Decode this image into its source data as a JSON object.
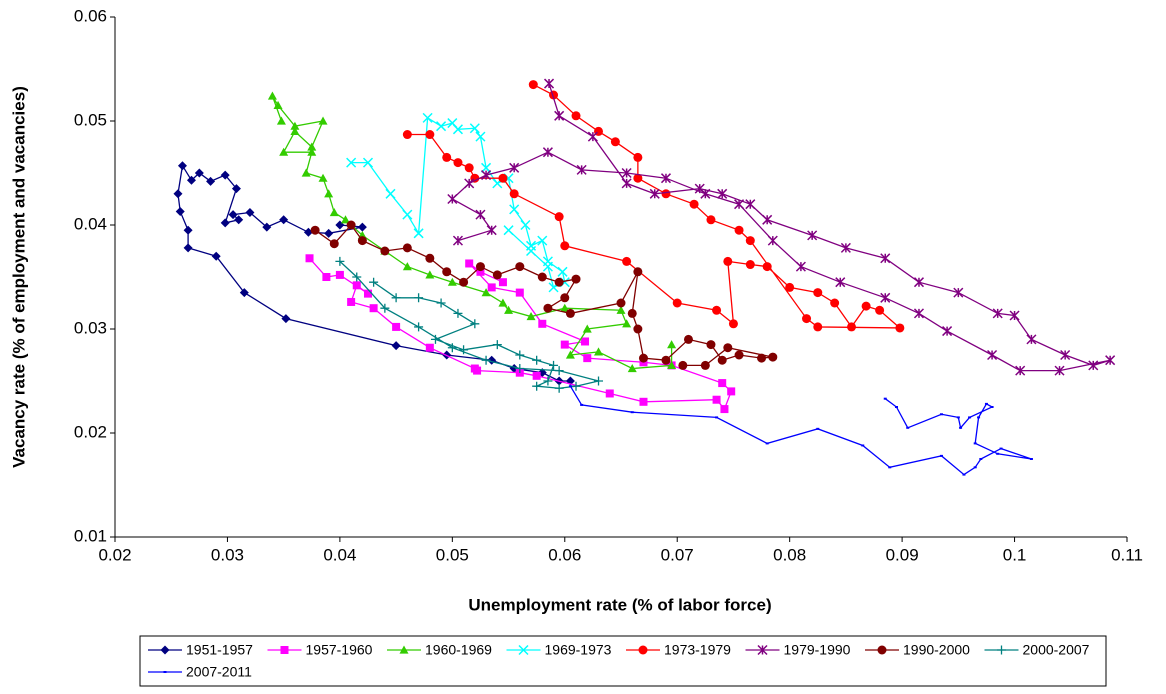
{
  "chart_data": {
    "type": "scatter",
    "lines": true,
    "xlabel": "Unemployment rate (% of labor force)",
    "ylabel": "Vacancy rate (% of employment and vacancies)",
    "xlim": [
      0.02,
      0.11
    ],
    "xticks": [
      0.02,
      0.03,
      0.04,
      0.05,
      0.06,
      0.07,
      0.08,
      0.09,
      0.1,
      0.11
    ],
    "ylim": [
      0.01,
      0.06
    ],
    "yticks": [
      0.01,
      0.02,
      0.03,
      0.04,
      0.05,
      0.06
    ],
    "grid": false,
    "legend": "bottom",
    "series": [
      {
        "name": "1951-1957",
        "color": "#000080",
        "marker": "diamond",
        "x": [
          0.04,
          0.042,
          0.039,
          0.0372,
          0.035,
          0.0335,
          0.032,
          0.0305,
          0.031,
          0.0298,
          0.0308,
          0.0298,
          0.0285,
          0.0275,
          0.0268,
          0.026,
          0.0256,
          0.0258,
          0.0265,
          0.0265,
          0.029,
          0.0315,
          0.0352,
          0.045,
          0.0495,
          0.0535,
          0.0555,
          0.058,
          0.0595,
          0.0605
        ],
        "values": [
          0.04,
          0.0398,
          0.0392,
          0.0393,
          0.0405,
          0.0398,
          0.0412,
          0.041,
          0.0405,
          0.0402,
          0.0435,
          0.0448,
          0.0442,
          0.045,
          0.0443,
          0.0457,
          0.043,
          0.0413,
          0.0395,
          0.0378,
          0.037,
          0.0335,
          0.031,
          0.0284,
          0.0275,
          0.027,
          0.0262,
          0.0258,
          0.025,
          0.025
        ]
      },
      {
        "name": "1957-1960",
        "color": "#ff00ff",
        "marker": "square",
        "x": [
          0.0373,
          0.0388,
          0.04,
          0.0425,
          0.0415,
          0.041,
          0.043,
          0.045,
          0.048,
          0.052,
          0.0522,
          0.056,
          0.0575,
          0.064,
          0.067,
          0.0735,
          0.0742,
          0.0748,
          0.074,
          0.0695,
          0.067,
          0.062,
          0.06,
          0.0618,
          0.058,
          0.056,
          0.0535,
          0.0515,
          0.0525,
          0.0545
        ],
        "values": [
          0.0368,
          0.035,
          0.0352,
          0.0334,
          0.0342,
          0.0326,
          0.032,
          0.0302,
          0.0282,
          0.0262,
          0.026,
          0.0258,
          0.0255,
          0.0238,
          0.023,
          0.0232,
          0.0223,
          0.024,
          0.0248,
          0.0265,
          0.0268,
          0.0272,
          0.0285,
          0.0288,
          0.0305,
          0.0335,
          0.034,
          0.0363,
          0.0355,
          0.0345
        ]
      },
      {
        "name": "1960-1969",
        "color": "#33cc00",
        "marker": "triangle",
        "x": [
          0.0695,
          0.0695,
          0.066,
          0.063,
          0.0605,
          0.062,
          0.0655,
          0.065,
          0.06,
          0.057,
          0.055,
          0.0545,
          0.053,
          0.05,
          0.048,
          0.046,
          0.044,
          0.042,
          0.0405,
          0.0395,
          0.039,
          0.0385,
          0.037,
          0.0375,
          0.035,
          0.036,
          0.0375,
          0.0385,
          0.036,
          0.0345,
          0.034,
          0.0348
        ],
        "values": [
          0.0285,
          0.0265,
          0.0262,
          0.0278,
          0.0275,
          0.03,
          0.0305,
          0.0318,
          0.032,
          0.0312,
          0.0318,
          0.0325,
          0.0335,
          0.0345,
          0.0352,
          0.036,
          0.0375,
          0.039,
          0.0405,
          0.0412,
          0.043,
          0.0445,
          0.045,
          0.047,
          0.047,
          0.049,
          0.0475,
          0.05,
          0.0495,
          0.0515,
          0.0524,
          0.05
        ]
      },
      {
        "name": "1969-1973",
        "color": "#00ffff",
        "marker": "x",
        "x": [
          0.041,
          0.0425,
          0.0445,
          0.046,
          0.047,
          0.0478,
          0.049,
          0.05,
          0.0505,
          0.052,
          0.0525,
          0.053,
          0.054,
          0.055,
          0.0555,
          0.0565,
          0.057,
          0.058,
          0.0585,
          0.0598,
          0.06,
          0.059,
          0.0585,
          0.057,
          0.055
        ],
        "values": [
          0.046,
          0.046,
          0.043,
          0.041,
          0.0392,
          0.0503,
          0.0495,
          0.0498,
          0.0492,
          0.0493,
          0.0485,
          0.0455,
          0.044,
          0.0445,
          0.0415,
          0.04,
          0.038,
          0.0385,
          0.0365,
          0.0355,
          0.0345,
          0.034,
          0.036,
          0.0375,
          0.0395
        ]
      },
      {
        "name": "1973-1979",
        "color": "#ff0000",
        "marker": "circle",
        "x": [
          0.046,
          0.048,
          0.0495,
          0.0505,
          0.0515,
          0.052,
          0.0545,
          0.0555,
          0.0595,
          0.06,
          0.0655,
          0.07,
          0.0735,
          0.075,
          0.0745,
          0.0765,
          0.078,
          0.08,
          0.0825,
          0.084,
          0.0855,
          0.0868,
          0.088,
          0.0898,
          0.0825,
          0.0815,
          0.0765,
          0.0755,
          0.073,
          0.0715,
          0.069,
          0.0665,
          0.0665,
          0.0645,
          0.063,
          0.061,
          0.059,
          0.0572
        ],
        "values": [
          0.0487,
          0.0487,
          0.0465,
          0.046,
          0.0455,
          0.0445,
          0.0445,
          0.043,
          0.0408,
          0.038,
          0.0365,
          0.0325,
          0.0318,
          0.0305,
          0.0365,
          0.0362,
          0.036,
          0.034,
          0.0335,
          0.0325,
          0.0302,
          0.0322,
          0.0318,
          0.0301,
          0.0302,
          0.031,
          0.0385,
          0.0395,
          0.0405,
          0.042,
          0.043,
          0.0445,
          0.0465,
          0.048,
          0.049,
          0.0505,
          0.0525,
          0.0535
        ]
      },
      {
        "name": "1979-1990",
        "color": "#800080",
        "marker": "star",
        "x": [
          0.0586,
          0.0595,
          0.0625,
          0.0655,
          0.068,
          0.072,
          0.074,
          0.0765,
          0.078,
          0.082,
          0.085,
          0.0885,
          0.0915,
          0.095,
          0.0985,
          0.1,
          0.1015,
          0.1045,
          0.107,
          0.1085,
          0.104,
          0.1005,
          0.098,
          0.094,
          0.0915,
          0.0885,
          0.0845,
          0.081,
          0.0785,
          0.0755,
          0.0725,
          0.069,
          0.0655,
          0.0615,
          0.0585,
          0.0555,
          0.053,
          0.0515,
          0.05,
          0.0525,
          0.0535,
          0.0505
        ],
        "values": [
          0.0536,
          0.0505,
          0.0485,
          0.044,
          0.043,
          0.0435,
          0.043,
          0.042,
          0.0405,
          0.039,
          0.0378,
          0.0368,
          0.0345,
          0.0335,
          0.0315,
          0.0313,
          0.029,
          0.0275,
          0.0265,
          0.027,
          0.026,
          0.026,
          0.0275,
          0.0298,
          0.0315,
          0.033,
          0.0345,
          0.036,
          0.0385,
          0.042,
          0.043,
          0.0445,
          0.045,
          0.0453,
          0.047,
          0.0455,
          0.0448,
          0.044,
          0.0425,
          0.041,
          0.0395,
          0.0385
        ]
      },
      {
        "name": "1990-2000",
        "color": "#800000",
        "marker": "circle",
        "x": [
          0.0378,
          0.0395,
          0.041,
          0.042,
          0.044,
          0.046,
          0.048,
          0.0495,
          0.051,
          0.0525,
          0.054,
          0.056,
          0.058,
          0.0595,
          0.061,
          0.06,
          0.0585,
          0.0605,
          0.065,
          0.0665,
          0.066,
          0.0665,
          0.067,
          0.069,
          0.071,
          0.073,
          0.074,
          0.0755,
          0.0775,
          0.0785,
          0.0745,
          0.0725,
          0.0705
        ],
        "values": [
          0.0395,
          0.0382,
          0.04,
          0.0385,
          0.0375,
          0.0378,
          0.0368,
          0.0355,
          0.0345,
          0.036,
          0.0352,
          0.036,
          0.035,
          0.0345,
          0.0348,
          0.033,
          0.032,
          0.0315,
          0.0325,
          0.0355,
          0.0315,
          0.03,
          0.0272,
          0.027,
          0.029,
          0.0285,
          0.027,
          0.0275,
          0.0272,
          0.0273,
          0.0282,
          0.0265,
          0.0265
        ]
      },
      {
        "name": "2000-2007",
        "color": "#008080",
        "marker": "plus",
        "x": [
          0.043,
          0.045,
          0.047,
          0.049,
          0.0505,
          0.052,
          0.0485,
          0.051,
          0.054,
          0.056,
          0.0575,
          0.059,
          0.0585,
          0.0575,
          0.0595,
          0.061,
          0.063,
          0.0595,
          0.056,
          0.053,
          0.05,
          0.047,
          0.044,
          0.0415,
          0.04
        ],
        "values": [
          0.0345,
          0.033,
          0.033,
          0.0325,
          0.0315,
          0.0305,
          0.029,
          0.028,
          0.0285,
          0.0275,
          0.027,
          0.0265,
          0.025,
          0.0245,
          0.0243,
          0.0245,
          0.025,
          0.026,
          0.0262,
          0.027,
          0.0282,
          0.0302,
          0.032,
          0.035,
          0.0365
        ]
      },
      {
        "name": "2007-2011",
        "color": "#0000ff",
        "marker": "dot",
        "x": [
          0.0605,
          0.0615,
          0.066,
          0.0735,
          0.078,
          0.0825,
          0.0865,
          0.0889,
          0.0935,
          0.0955,
          0.0965,
          0.097,
          0.0988,
          0.1015,
          0.0985,
          0.0965,
          0.0968,
          0.0975,
          0.098,
          0.096,
          0.0952,
          0.095,
          0.0935,
          0.0905,
          0.0895,
          0.0885
        ],
        "values": [
          0.0245,
          0.0227,
          0.022,
          0.0215,
          0.019,
          0.0204,
          0.0188,
          0.0167,
          0.0178,
          0.016,
          0.0167,
          0.0175,
          0.0185,
          0.0175,
          0.018,
          0.019,
          0.0215,
          0.0228,
          0.0225,
          0.0215,
          0.0205,
          0.0215,
          0.0218,
          0.0205,
          0.0225,
          0.0233
        ]
      }
    ]
  }
}
